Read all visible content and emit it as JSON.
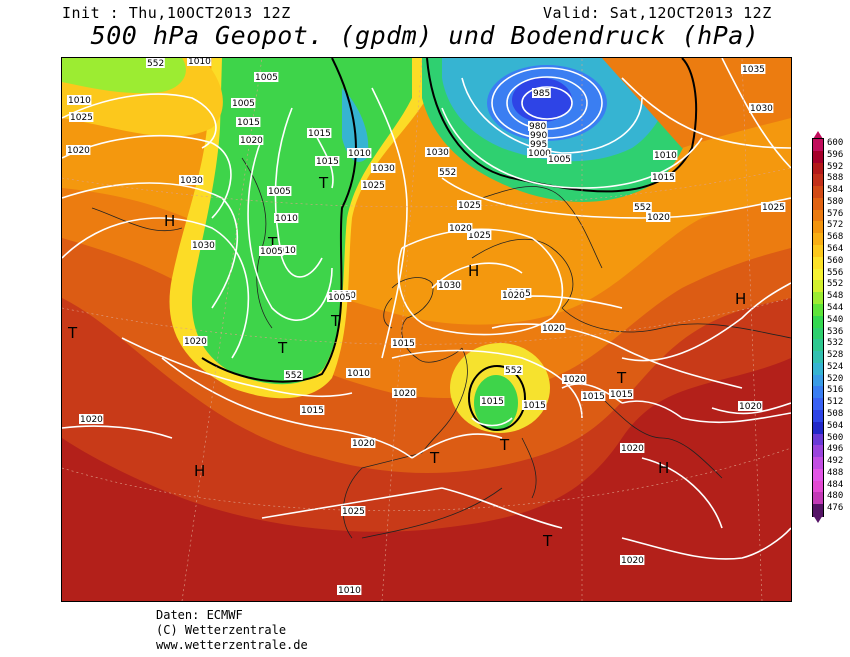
{
  "header": {
    "init": "Init : Thu,10OCT2013 12Z",
    "valid": "Valid: Sat,12OCT2013 12Z",
    "title": "500 hPa Geopot. (gpdm) und Bodendruck (hPa)"
  },
  "legend": {
    "levels": [
      "600",
      "596",
      "592",
      "588",
      "584",
      "580",
      "576",
      "572",
      "568",
      "564",
      "560",
      "556",
      "552",
      "548",
      "544",
      "540",
      "536",
      "532",
      "528",
      "524",
      "520",
      "516",
      "512",
      "508",
      "504",
      "500",
      "496",
      "492",
      "488",
      "484",
      "480",
      "476"
    ],
    "colors": [
      "#c10d5c",
      "#a5002a",
      "#b31a1a",
      "#c2301a",
      "#d24a16",
      "#e06212",
      "#ea7a10",
      "#f2940e",
      "#f8ae14",
      "#fcc81c",
      "#fce228",
      "#f6f232",
      "#d2f02e",
      "#9cec32",
      "#5ee43a",
      "#34d850",
      "#2ed06e",
      "#2ec890",
      "#32c0b0",
      "#36b4d2",
      "#3a9ce6",
      "#3a7ef2",
      "#3a62f4",
      "#2e44e6",
      "#2228c8",
      "#6a3ad6",
      "#9a44dc",
      "#c24ee2",
      "#e256e6",
      "#e24ad2",
      "#c23ab6",
      "#551466"
    ]
  },
  "map_labels": {
    "highs": [
      "H",
      "H",
      "H",
      "H",
      "H"
    ],
    "lows": [
      "T",
      "T",
      "T",
      "T",
      "T",
      "T",
      "T",
      "T",
      "T"
    ],
    "isobars": [
      "1010",
      "1005",
      "1010",
      "1005",
      "1020",
      "1015",
      "1020",
      "1025",
      "1030",
      "1015",
      "1030",
      "1025",
      "985",
      "980",
      "990",
      "995",
      "1000",
      "1005",
      "1010",
      "1015",
      "1020",
      "1035",
      "1030",
      "1025",
      "1010",
      "1005",
      "1010",
      "1010",
      "1005",
      "1010",
      "1005",
      "1015",
      "1010",
      "1030",
      "1025",
      "1020",
      "1025",
      "1030",
      "1025",
      "1020",
      "1020",
      "1015",
      "1020",
      "1015",
      "1020",
      "1015",
      "1015",
      "1020",
      "1020",
      "1020",
      "1020",
      "1025",
      "1015",
      "1015",
      "1020",
      "1020",
      "1010",
      "1030"
    ],
    "height_552": [
      "552",
      "552",
      "552",
      "552",
      "552"
    ]
  },
  "credits": {
    "line1": "Daten: ECMWF",
    "line2": "(C) Wetterzentrale",
    "line3": "www.wetterzentrale.de"
  }
}
